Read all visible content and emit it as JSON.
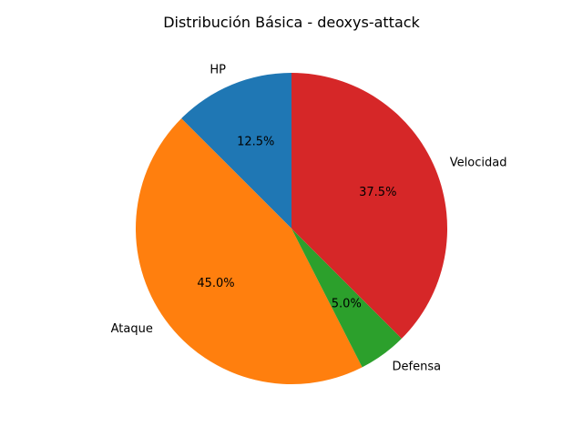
{
  "chart_data": {
    "type": "pie",
    "title": "Distribución Básica - deoxys-attack",
    "start_angle_deg": 90,
    "direction": "counterclockwise",
    "slices": [
      {
        "label": "HP",
        "value": 12.5,
        "pct_label": "12.5%",
        "color": "#1f77b4"
      },
      {
        "label": "Ataque",
        "value": 45.0,
        "pct_label": "45.0%",
        "color": "#ff7f0e"
      },
      {
        "label": "Defensa",
        "value": 5.0,
        "pct_label": "5.0%",
        "color": "#2ca02c"
      },
      {
        "label": "Velocidad",
        "value": 37.5,
        "pct_label": "37.5%",
        "color": "#d62728"
      }
    ]
  }
}
